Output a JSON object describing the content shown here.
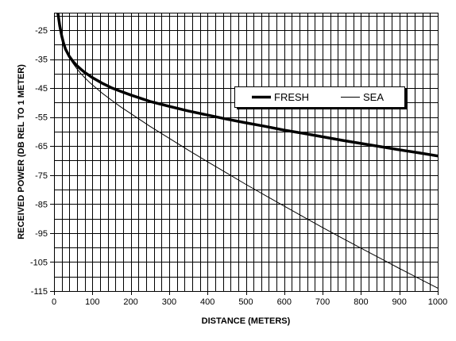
{
  "chart_data": {
    "type": "line",
    "title": "",
    "xlabel": "DISTANCE (METERS)",
    "ylabel": "RECEIVED POWER (DB REL TO 1 METER)",
    "xlim": [
      0,
      1000
    ],
    "ylim": [
      -115,
      -19
    ],
    "x_ticks": [
      0,
      100,
      200,
      300,
      400,
      500,
      600,
      700,
      800,
      900,
      1000
    ],
    "y_ticks": [
      -25,
      -35,
      -45,
      -55,
      -65,
      -75,
      -85,
      -95,
      -105,
      -115
    ],
    "x_tick_labels": [
      "0",
      "100",
      "200",
      "300",
      "400",
      "500",
      "600",
      "700",
      "800",
      "900",
      "1000"
    ],
    "y_tick_labels": [
      "-25",
      "-35",
      "-45",
      "-55",
      "-65",
      "-75",
      "-85",
      "-95",
      "-105",
      "-115"
    ],
    "grid": true,
    "legend_position": "right-center-top",
    "series": [
      {
        "name": "FRESH",
        "color": "#000000",
        "style": "thick",
        "points": [
          [
            10,
            -19
          ],
          [
            15,
            -23.5
          ],
          [
            20,
            -27
          ],
          [
            25,
            -29.6
          ],
          [
            30,
            -31.6
          ],
          [
            40,
            -34.1
          ],
          [
            50,
            -35.9
          ],
          [
            60,
            -37.3
          ],
          [
            70,
            -38.5
          ],
          [
            80,
            -39.6
          ],
          [
            90,
            -40.5
          ],
          [
            100,
            -41.4
          ],
          [
            125,
            -43.3
          ],
          [
            150,
            -44.9
          ],
          [
            175,
            -46.2
          ],
          [
            200,
            -47.4
          ],
          [
            250,
            -49.6
          ],
          [
            300,
            -51.3
          ],
          [
            350,
            -52.9
          ],
          [
            400,
            -54.3
          ],
          [
            450,
            -55.7
          ],
          [
            500,
            -57
          ],
          [
            550,
            -58.2
          ],
          [
            600,
            -59.5
          ],
          [
            650,
            -60.6
          ],
          [
            700,
            -61.8
          ],
          [
            750,
            -63
          ],
          [
            800,
            -64.1
          ],
          [
            850,
            -65.2
          ],
          [
            900,
            -66.3
          ],
          [
            950,
            -67.3
          ],
          [
            1000,
            -68.4
          ]
        ]
      },
      {
        "name": "SEA",
        "color": "#000000",
        "style": "thin",
        "points": [
          [
            10,
            -19
          ],
          [
            15,
            -23.5
          ],
          [
            20,
            -27
          ],
          [
            25,
            -29.7
          ],
          [
            30,
            -31.8
          ],
          [
            40,
            -34.5
          ],
          [
            50,
            -36.6
          ],
          [
            60,
            -38.4
          ],
          [
            70,
            -40
          ],
          [
            80,
            -41.4
          ],
          [
            90,
            -42.7
          ],
          [
            100,
            -43.9
          ],
          [
            125,
            -46.7
          ],
          [
            150,
            -49.2
          ],
          [
            175,
            -51.6
          ],
          [
            200,
            -53.8
          ],
          [
            250,
            -58.2
          ],
          [
            300,
            -62.3
          ],
          [
            350,
            -66.4
          ],
          [
            400,
            -70.4
          ],
          [
            450,
            -74.3
          ],
          [
            500,
            -78.2
          ],
          [
            550,
            -82
          ],
          [
            600,
            -85.7
          ],
          [
            650,
            -89.4
          ],
          [
            700,
            -93.1
          ],
          [
            750,
            -96.7
          ],
          [
            800,
            -100.2
          ],
          [
            850,
            -103.7
          ],
          [
            900,
            -107.2
          ],
          [
            950,
            -110.6
          ],
          [
            1000,
            -114
          ]
        ]
      }
    ]
  }
}
